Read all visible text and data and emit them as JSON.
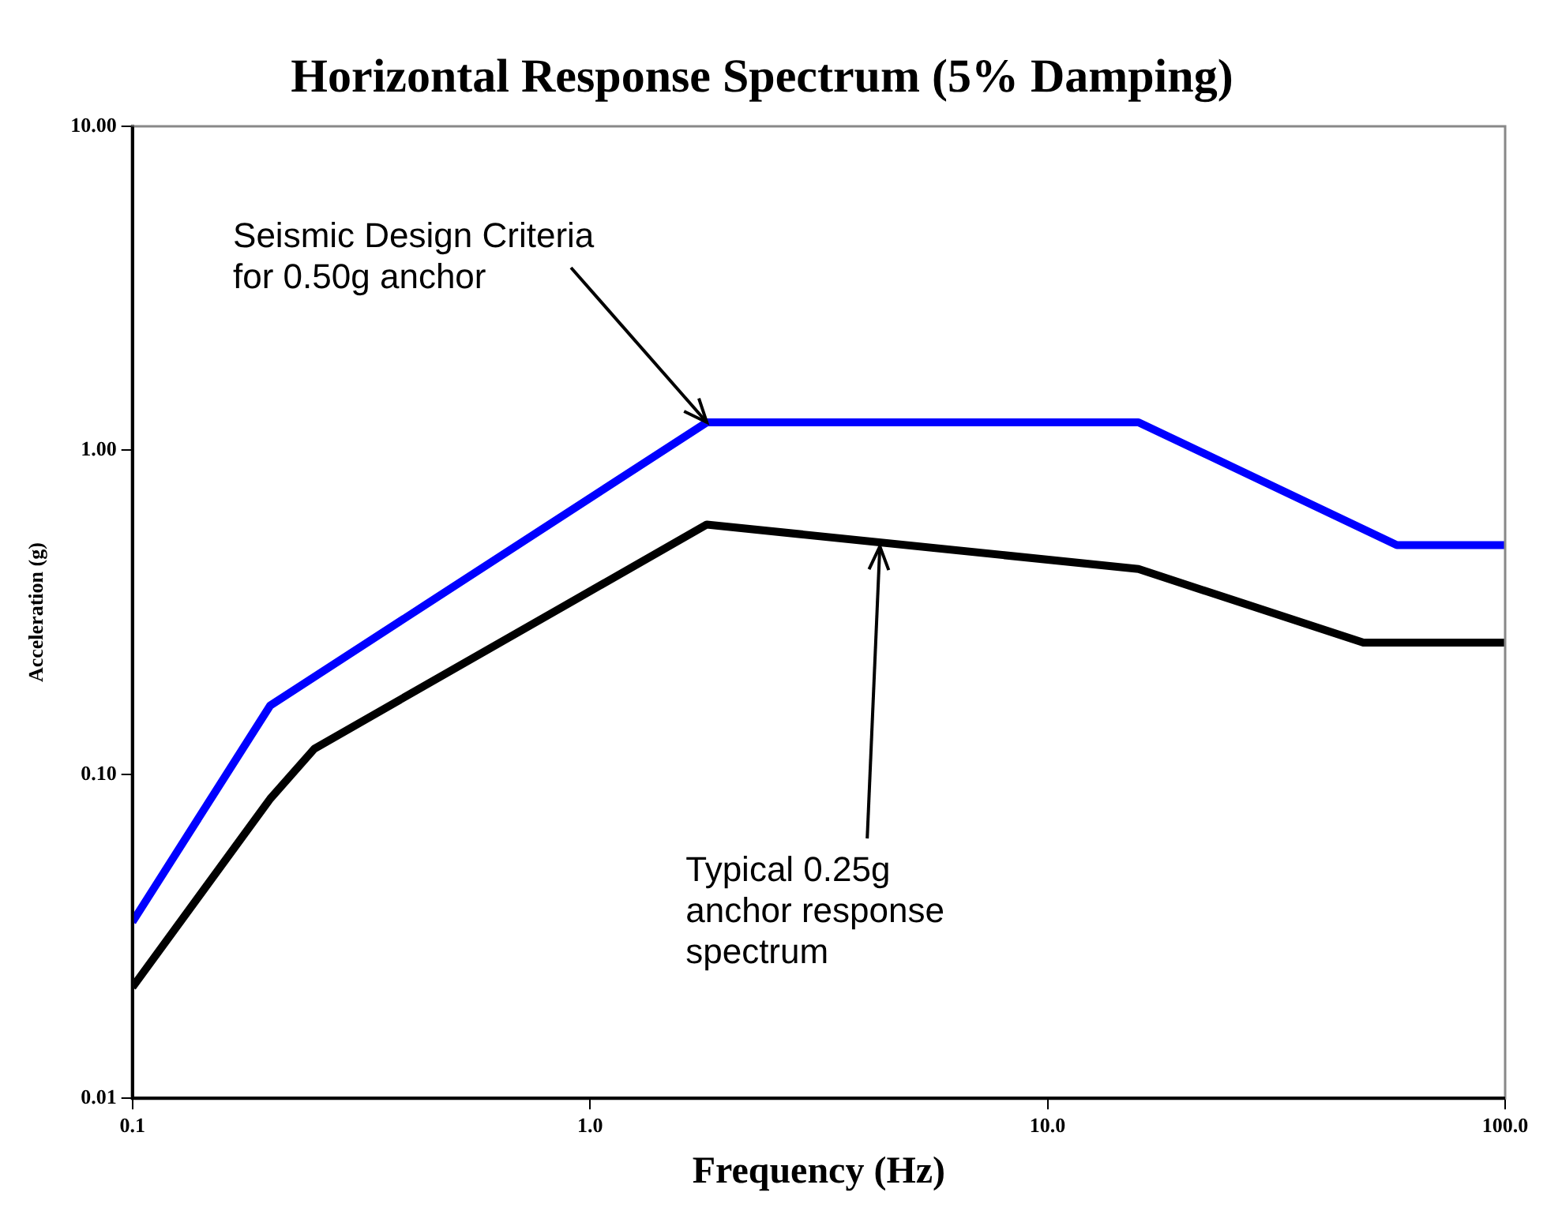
{
  "chart_data": {
    "type": "line",
    "title": "Horizontal Response Spectrum (5% Damping)",
    "xlabel": "Frequency (Hz)",
    "ylabel": "Acceleration (g)",
    "log": "xy",
    "xlim": [
      0.1,
      100
    ],
    "ylim": [
      0.01,
      10
    ],
    "xticks": [
      {
        "value": 0.1,
        "label": "0.1"
      },
      {
        "value": 1,
        "label": "1.0"
      },
      {
        "value": 10,
        "label": "10.0"
      },
      {
        "value": 100,
        "label": "100.0"
      }
    ],
    "yticks": [
      {
        "value": 0.01,
        "label": "0.01"
      },
      {
        "value": 0.1,
        "label": "0.10"
      },
      {
        "value": 1,
        "label": "1.00"
      },
      {
        "value": 10,
        "label": "10.00"
      }
    ],
    "grid": false,
    "legend": false,
    "marker": "none",
    "line_style": "solid",
    "series": [
      {
        "color": "#0000ff",
        "x": [
          0.1,
          0.2,
          1.8,
          15.8,
          58,
          100
        ],
        "values": [
          0.035,
          0.163,
          1.22,
          1.22,
          0.51,
          0.51
        ]
      },
      {
        "color": "#000000",
        "x": [
          0.1,
          0.2,
          0.25,
          1.8,
          15.8,
          49,
          100
        ],
        "values": [
          0.022,
          0.084,
          0.12,
          0.59,
          0.43,
          0.255,
          0.255
        ]
      }
    ],
    "annotations": [
      {
        "text": "Seismic Design Criteria for 0.50g anchor",
        "x": 1.8,
        "y": 1.22
      },
      {
        "text": "Typical 0.25g anchor response spectrum",
        "x": 4.3,
        "y": 0.505
      }
    ]
  }
}
